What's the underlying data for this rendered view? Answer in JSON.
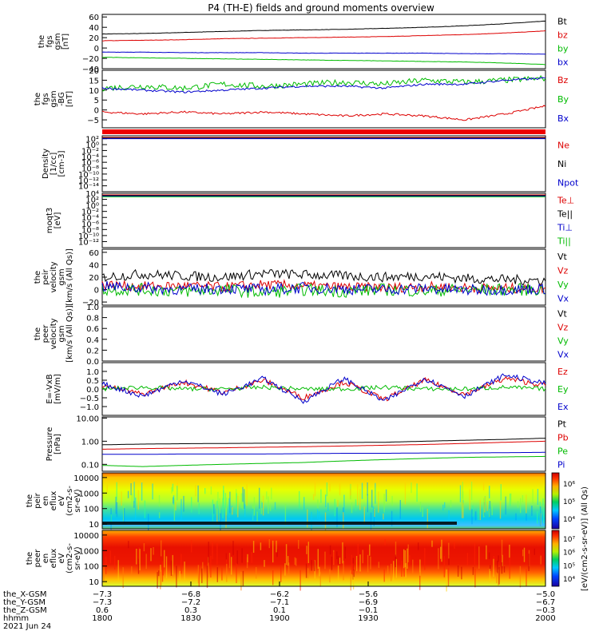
{
  "title": "P4 (TH-E) fields and ground moments overview",
  "colorbar_label": "[eV/(cm2-s-sr-eV)] (All Qs)",
  "chart_data": [
    {
      "type": "line",
      "id": "fgs",
      "ylabel": [
        "the",
        "fgs",
        "gsm",
        "[nT]"
      ],
      "ylim": [
        -40,
        65
      ],
      "ticks": [
        -40,
        -20,
        0,
        20,
        40,
        60
      ],
      "tick_labels": [
        "−40",
        "−20",
        "0",
        "20",
        "40",
        "60"
      ],
      "series": [
        {
          "name": "Bt",
          "color": "#000000",
          "values": [
            27,
            28,
            30,
            32,
            34,
            35,
            36,
            38,
            40,
            43,
            47,
            52
          ],
          "noise": 0.3
        },
        {
          "name": "bz",
          "color": "#dd0000",
          "values": [
            14,
            15,
            16,
            18,
            19,
            20,
            21,
            22,
            24,
            26,
            29,
            33
          ],
          "noise": 0.3
        },
        {
          "name": "by",
          "color": "#00bb00",
          "values": [
            -18,
            -19,
            -20,
            -21,
            -22,
            -23,
            -24,
            -25,
            -26,
            -27,
            -29,
            -32
          ],
          "noise": 0.3
        },
        {
          "name": "bx",
          "color": "#0000cc",
          "values": [
            -8,
            -8,
            -9,
            -9,
            -9,
            -10,
            -10,
            -10,
            -10,
            -11,
            -11,
            -12
          ],
          "noise": 0.3
        }
      ]
    },
    {
      "type": "line",
      "id": "fgs-dsl",
      "ylabel": [
        "the",
        "fgs",
        "gsm",
        "-BG",
        "[nT]"
      ],
      "ylim": [
        -9,
        20
      ],
      "ticks": [
        -5,
        0,
        5,
        10,
        15,
        20
      ],
      "tick_labels": [
        "−5",
        "0",
        "5",
        "10",
        "15",
        "20"
      ],
      "series": [
        {
          "name": "Bz",
          "color": "#dd0000",
          "values": [
            -1,
            -2,
            -1,
            -2,
            -1,
            -2,
            -3,
            -2,
            -3,
            -5,
            -2,
            2
          ],
          "noise": 0.5
        },
        {
          "name": "By",
          "color": "#00bb00",
          "values": [
            11,
            12,
            11,
            13,
            12,
            13,
            14,
            13,
            15,
            14,
            15,
            16
          ],
          "noise": 1.5
        },
        {
          "name": "Bx",
          "color": "#0000cc",
          "values": [
            11,
            10,
            9,
            10,
            11,
            12,
            12,
            11,
            13,
            13,
            15,
            16
          ],
          "noise": 0.5
        }
      ]
    },
    {
      "type": "line",
      "id": "density",
      "ylabel": [
        "Density",
        "[1/cc]",
        "[cm-3]"
      ],
      "ylim": [
        -16,
        3
      ],
      "ticks": [
        2,
        0,
        -2,
        -4,
        -6,
        -8,
        -10,
        -12,
        -14
      ],
      "tick_labels": [
        "10²",
        "10⁰",
        "10⁻²",
        "10⁻⁴",
        "10⁻⁶",
        "10⁻⁸",
        "10⁻¹⁰",
        "10⁻¹²",
        "10⁻¹⁴"
      ],
      "series": [
        {
          "name": "Ne",
          "color": "#dd0000"
        },
        {
          "name": "Ni",
          "color": "#000000"
        },
        {
          "name": "Npot",
          "color": "#0000cc"
        }
      ]
    },
    {
      "type": "line",
      "id": "temperature",
      "ylabel": [
        "moqt3",
        "[eV]"
      ],
      "ylim": [
        -14,
        4
      ],
      "ticks": [
        4,
        2,
        0,
        -2,
        -4,
        -6,
        -8,
        -10,
        -12
      ],
      "tick_labels": [
        "10⁴",
        "10²",
        "10⁰",
        "10⁻²",
        "10⁻⁴",
        "10⁻⁶",
        "10⁻⁸",
        "10⁻¹⁰",
        "10⁻¹²"
      ],
      "series": [
        {
          "name": "Te⊥",
          "color": "#dd0000"
        },
        {
          "name": "Te||",
          "color": "#000000"
        },
        {
          "name": "Ti⊥",
          "color": "#0000cc"
        },
        {
          "name": "Ti||",
          "color": "#00bb00"
        }
      ]
    },
    {
      "type": "line",
      "id": "peir-velocity",
      "ylabel": [
        "the",
        "peir",
        "velocity",
        "gsm",
        "[km/s (All Qs)]"
      ],
      "ylim": [
        -25,
        65
      ],
      "ticks": [
        -20,
        0,
        20,
        40,
        60
      ],
      "tick_labels": [
        "−20",
        "0",
        "20",
        "40",
        "60"
      ],
      "series": [
        {
          "name": "Vt",
          "color": "#000000",
          "values": [
            20,
            25,
            22,
            20,
            26,
            24,
            22,
            20,
            22,
            18,
            16,
            15
          ],
          "noise": 8
        },
        {
          "name": "Vz",
          "color": "#dd0000",
          "values": [
            8,
            5,
            6,
            4,
            8,
            6,
            4,
            3,
            5,
            3,
            2,
            2
          ],
          "noise": 8
        },
        {
          "name": "Vy",
          "color": "#00bb00",
          "values": [
            0,
            0,
            -3,
            0,
            -5,
            0,
            -3,
            0,
            -2,
            0,
            0,
            0
          ],
          "noise": 10
        },
        {
          "name": "Vx",
          "color": "#0000cc",
          "values": [
            5,
            3,
            0,
            2,
            0,
            3,
            1,
            0,
            2,
            -1,
            0,
            1
          ],
          "noise": 9
        }
      ]
    },
    {
      "type": "line",
      "id": "peer-velocity",
      "ylabel": [
        "the",
        "peer",
        "velocity",
        "gsm",
        "[km/s (All Qs)]"
      ],
      "ylim": [
        0,
        1
      ],
      "ticks": [
        0,
        0.2,
        0.4,
        0.6,
        0.8,
        1.0
      ],
      "tick_labels": [
        "0.0",
        "0.2",
        "0.4",
        "0.6",
        "0.8",
        "1.0"
      ],
      "series": [
        {
          "name": "Vt",
          "color": "#000000"
        },
        {
          "name": "Vz",
          "color": "#dd0000"
        },
        {
          "name": "Vy",
          "color": "#00bb00"
        },
        {
          "name": "Vx",
          "color": "#0000cc"
        }
      ]
    },
    {
      "type": "line",
      "id": "efield",
      "ylabel": [
        "E=-VxB",
        "[mV/m]"
      ],
      "ylim": [
        -1.5,
        1.5
      ],
      "ticks": [
        -1.0,
        -0.5,
        0.0,
        0.5,
        1.0
      ],
      "tick_labels": [
        "−1.0",
        "−0.5",
        "0.0",
        "0.5",
        "1.0"
      ],
      "series": [
        {
          "name": "Ez",
          "color": "#dd0000",
          "values": [
            0.2,
            -0.3,
            0.4,
            -0.2,
            0.5,
            -0.5,
            0.4,
            -0.6,
            0.5,
            -0.3,
            0.6,
            0.2
          ],
          "noise": 0.15
        },
        {
          "name": "Ey",
          "color": "#00bb00",
          "values": [
            0.0,
            0.1,
            0.0,
            0.0,
            0.1,
            0.0,
            0.0,
            0.1,
            0.0,
            0.0,
            0.1,
            0.0
          ],
          "noise": 0.12
        },
        {
          "name": "Ex",
          "color": "#0000cc",
          "values": [
            0.3,
            -0.4,
            0.5,
            -0.3,
            0.6,
            -0.7,
            0.6,
            -0.7,
            0.6,
            -0.4,
            0.8,
            0.3
          ],
          "noise": 0.15
        }
      ]
    },
    {
      "type": "line",
      "id": "pressure",
      "ylabel": [
        "Pressure",
        "[nPa]"
      ],
      "ylim": [
        -1.3,
        1.05
      ],
      "log": true,
      "ticks": [
        1,
        0,
        -1
      ],
      "tick_labels": [
        "10.00",
        "1.00",
        "0.10"
      ],
      "series": [
        {
          "name": "Pt",
          "color": "#000000",
          "values": [
            0.7,
            0.75,
            0.78,
            0.8,
            0.82,
            0.85,
            0.88,
            0.9,
            1.0,
            1.1,
            1.2,
            1.35
          ]
        },
        {
          "name": "Pb",
          "color": "#dd0000",
          "values": [
            0.45,
            0.48,
            0.5,
            0.52,
            0.55,
            0.58,
            0.62,
            0.67,
            0.72,
            0.8,
            0.9,
            1.0
          ]
        },
        {
          "name": "Pe",
          "color": "#00bb00",
          "values": [
            0.09,
            0.08,
            0.09,
            0.1,
            0.11,
            0.12,
            0.14,
            0.16,
            0.18,
            0.2,
            0.21,
            0.22
          ]
        },
        {
          "name": "Pi",
          "color": "#0000cc",
          "values": [
            0.27,
            0.27,
            0.28,
            0.28,
            0.28,
            0.29,
            0.3,
            0.3,
            0.31,
            0.31,
            0.32,
            0.33
          ]
        }
      ]
    },
    {
      "type": "heatmap",
      "id": "peir-spec",
      "ylabel": [
        "the",
        "peir",
        "en",
        "eflux",
        "eV",
        "(cm2-s-",
        "sr-eV)"
      ],
      "ticks": [
        10,
        100,
        1000,
        10000
      ],
      "tick_labels": [
        "10",
        "100",
        "1000",
        "10000"
      ],
      "colorbar_ticks": [
        "10⁴",
        "10⁵",
        "10⁶"
      ]
    },
    {
      "type": "heatmap",
      "id": "peer-spec",
      "ylabel": [
        "the",
        "peer",
        "en",
        "eflux",
        "eV",
        "(cm2-s-",
        "sr-eV)"
      ],
      "ticks": [
        10,
        100,
        1000,
        10000
      ],
      "tick_labels": [
        "10",
        "100",
        "1000",
        "10000"
      ],
      "colorbar_ticks": [
        "10⁴",
        "10⁵",
        "10⁶",
        "10⁷"
      ]
    }
  ],
  "x_axis": {
    "ticks": [
      {
        "frac": 0.0,
        "rows": [
          "−7.3",
          "−7.3",
          "0.6",
          "1800"
        ]
      },
      {
        "frac": 0.2,
        "rows": [
          "−6.8",
          "−7.2",
          "0.3",
          "1830"
        ]
      },
      {
        "frac": 0.4,
        "rows": [
          "−6.2",
          "−7.1",
          "0.1",
          "1900"
        ]
      },
      {
        "frac": 0.6,
        "rows": [
          "−5.6",
          "−6.9",
          "−0.1",
          "1930"
        ]
      },
      {
        "frac": 1.0,
        "rows": [
          "−5.0",
          "−6.7",
          "−0.3",
          "2000"
        ]
      }
    ],
    "row_labels": [
      "the_X-GSM",
      "the_Y-GSM",
      "the_Z-GSM",
      "hhmm"
    ],
    "date": "2021 Jun 24"
  }
}
